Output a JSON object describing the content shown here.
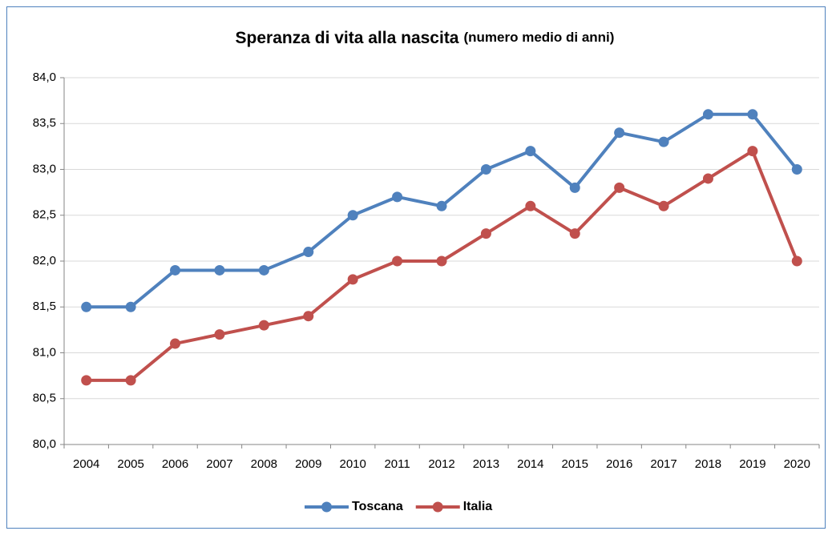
{
  "chart_data": {
    "type": "line",
    "title": "Speranza di vita alla nascita",
    "subtitle": "(numero medio di anni)",
    "categories": [
      "2004",
      "2005",
      "2006",
      "2007",
      "2008",
      "2009",
      "2010",
      "2011",
      "2012",
      "2013",
      "2014",
      "2015",
      "2016",
      "2017",
      "2018",
      "2019",
      "2020"
    ],
    "series": [
      {
        "name": "Toscana",
        "color": "#4f81bd",
        "values": [
          81.5,
          81.5,
          81.9,
          81.9,
          81.9,
          82.1,
          82.5,
          82.7,
          82.6,
          83.0,
          83.2,
          82.8,
          83.4,
          83.3,
          83.6,
          83.6,
          83.0
        ]
      },
      {
        "name": "Italia",
        "color": "#c0504d",
        "values": [
          80.7,
          80.7,
          81.1,
          81.2,
          81.3,
          81.4,
          81.8,
          82.0,
          82.0,
          82.3,
          82.6,
          82.3,
          82.8,
          82.6,
          82.9,
          83.2,
          82.0
        ]
      }
    ],
    "ylim": [
      80,
      84
    ],
    "yticks": [
      {
        "value": 80,
        "label": "80,0"
      },
      {
        "value": 80.5,
        "label": "80,5"
      },
      {
        "value": 81,
        "label": "81,0"
      },
      {
        "value": 81.5,
        "label": "81,5"
      },
      {
        "value": 82,
        "label": "82,0"
      },
      {
        "value": 82.5,
        "label": "82,5"
      },
      {
        "value": 83,
        "label": "83,0"
      },
      {
        "value": 83.5,
        "label": "83,5"
      },
      {
        "value": 84,
        "label": "84,0"
      }
    ],
    "grid": true,
    "legend": "bottom"
  }
}
